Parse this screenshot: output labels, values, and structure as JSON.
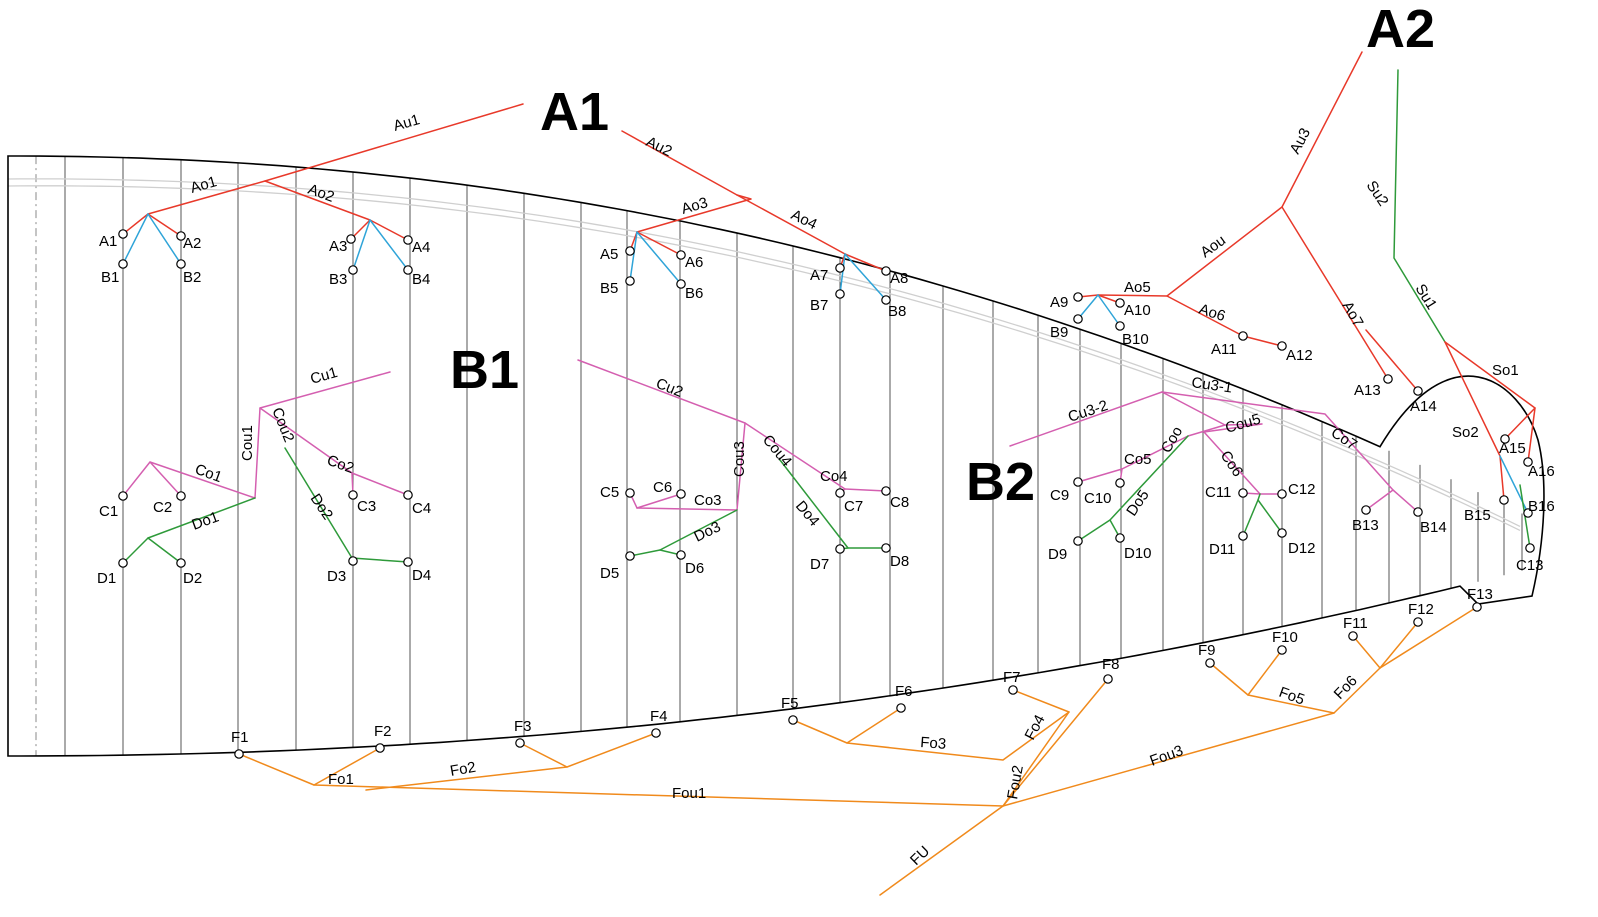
{
  "colors": {
    "A": "#e8392a",
    "S": "#2e9a3a",
    "B": "#2fa4d8",
    "C": "#d45fb0",
    "D": "#2e9a3a",
    "F": "#f08a1c",
    "outline": "#000000",
    "ribs": "#555555",
    "spars": "#cfcfcf"
  },
  "group_labels": [
    {
      "id": "A1",
      "text": "A1"
    },
    {
      "id": "A2",
      "text": "A2"
    },
    {
      "id": "B1",
      "text": "B1"
    },
    {
      "id": "B2",
      "text": "B2"
    }
  ],
  "points": [
    {
      "label": "A1"
    },
    {
      "label": "A2"
    },
    {
      "label": "B1"
    },
    {
      "label": "B2"
    },
    {
      "label": "A3"
    },
    {
      "label": "A4"
    },
    {
      "label": "B3"
    },
    {
      "label": "B4"
    },
    {
      "label": "A5"
    },
    {
      "label": "A6"
    },
    {
      "label": "B5"
    },
    {
      "label": "B6"
    },
    {
      "label": "A7"
    },
    {
      "label": "A8"
    },
    {
      "label": "B7"
    },
    {
      "label": "B8"
    },
    {
      "label": "A9"
    },
    {
      "label": "A10"
    },
    {
      "label": "B9"
    },
    {
      "label": "B10"
    },
    {
      "label": "A11"
    },
    {
      "label": "A12"
    },
    {
      "label": "A13"
    },
    {
      "label": "A14"
    },
    {
      "label": "A15"
    },
    {
      "label": "A16"
    },
    {
      "label": "B15"
    },
    {
      "label": "B16"
    },
    {
      "label": "C13"
    },
    {
      "label": "C1"
    },
    {
      "label": "C2"
    },
    {
      "label": "C3"
    },
    {
      "label": "C4"
    },
    {
      "label": "D1"
    },
    {
      "label": "D2"
    },
    {
      "label": "D3"
    },
    {
      "label": "D4"
    },
    {
      "label": "C5"
    },
    {
      "label": "C6"
    },
    {
      "label": "C7"
    },
    {
      "label": "C8"
    },
    {
      "label": "D5"
    },
    {
      "label": "D6"
    },
    {
      "label": "D7"
    },
    {
      "label": "D8"
    },
    {
      "label": "C9"
    },
    {
      "label": "C10"
    },
    {
      "label": "C11"
    },
    {
      "label": "C12"
    },
    {
      "label": "D9"
    },
    {
      "label": "D10"
    },
    {
      "label": "D11"
    },
    {
      "label": "D12"
    },
    {
      "label": "B13"
    },
    {
      "label": "B14"
    },
    {
      "label": "F1"
    },
    {
      "label": "F2"
    },
    {
      "label": "F3"
    },
    {
      "label": "F4"
    },
    {
      "label": "F5"
    },
    {
      "label": "F6"
    },
    {
      "label": "F7"
    },
    {
      "label": "F8"
    },
    {
      "label": "F9"
    },
    {
      "label": "F10"
    },
    {
      "label": "F11"
    },
    {
      "label": "F12"
    },
    {
      "label": "F13"
    }
  ],
  "line_labels": [
    {
      "text": "Au1"
    },
    {
      "text": "Ao1"
    },
    {
      "text": "Ao2"
    },
    {
      "text": "Au2"
    },
    {
      "text": "Ao3"
    },
    {
      "text": "Ao4"
    },
    {
      "text": "Au3"
    },
    {
      "text": "Aou"
    },
    {
      "text": "Ao5"
    },
    {
      "text": "Ao6"
    },
    {
      "text": "Ao7"
    },
    {
      "text": "Su2"
    },
    {
      "text": "Su1"
    },
    {
      "text": "So1"
    },
    {
      "text": "So2"
    },
    {
      "text": "Cu1"
    },
    {
      "text": "Cou1"
    },
    {
      "text": "Cou2"
    },
    {
      "text": "Co1"
    },
    {
      "text": "Co2"
    },
    {
      "text": "Do1"
    },
    {
      "text": "Do2"
    },
    {
      "text": "Cu2"
    },
    {
      "text": "Cou3"
    },
    {
      "text": "Cou4"
    },
    {
      "text": "Co3"
    },
    {
      "text": "Co4"
    },
    {
      "text": "Do3"
    },
    {
      "text": "Do4"
    },
    {
      "text": "Cu3-2"
    },
    {
      "text": "Cu3-1"
    },
    {
      "text": "Co5"
    },
    {
      "text": "Coo"
    },
    {
      "text": "Cou5"
    },
    {
      "text": "Co6"
    },
    {
      "text": "Co7"
    },
    {
      "text": "Do5"
    },
    {
      "text": "Fo1"
    },
    {
      "text": "Fo2"
    },
    {
      "text": "Fou1"
    },
    {
      "text": "Fo3"
    },
    {
      "text": "Fo4"
    },
    {
      "text": "Fou2"
    },
    {
      "text": "Fou3"
    },
    {
      "text": "Fo5"
    },
    {
      "text": "Fo6"
    },
    {
      "text": "FU"
    }
  ]
}
